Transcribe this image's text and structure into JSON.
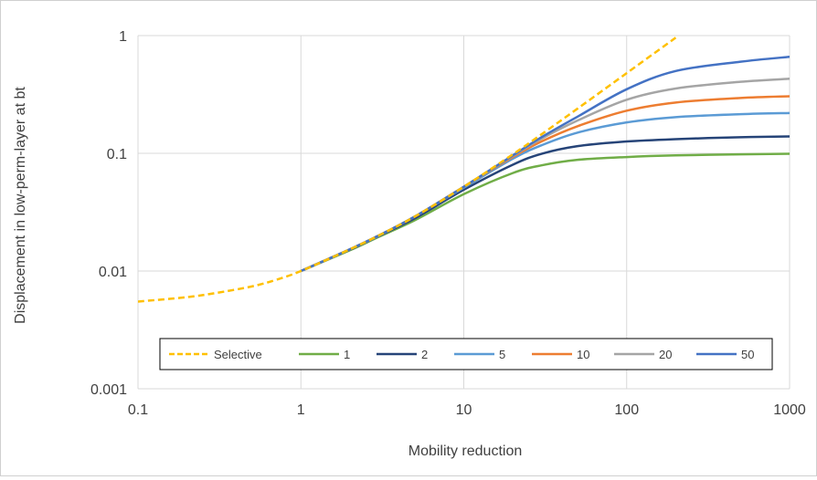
{
  "chart_data": {
    "type": "line",
    "title": "",
    "xlabel": "Mobility reduction",
    "ylabel": "Displacement in low-perm-layer at bt",
    "xscale": "log",
    "yscale": "log",
    "xlim": [
      0.1,
      1000
    ],
    "ylim": [
      0.001,
      1
    ],
    "x_ticks": [
      "0.1",
      "1",
      "10",
      "100",
      "1000"
    ],
    "y_ticks": [
      "0.001",
      "0.01",
      "0.1",
      "1"
    ],
    "grid": true,
    "legend_position": "bottom-inside",
    "series": [
      {
        "name": "Selective",
        "color": "#FFC000",
        "dash": "dashed",
        "x": [
          0.1,
          0.2,
          0.3,
          0.5,
          0.7,
          1,
          2,
          3,
          5,
          10,
          20,
          30,
          50,
          100,
          200
        ],
        "y": [
          0.0055,
          0.006,
          0.0065,
          0.0074,
          0.0084,
          0.01,
          0.0153,
          0.02,
          0.029,
          0.052,
          0.098,
          0.145,
          0.24,
          0.48,
          0.96
        ]
      },
      {
        "name": "1",
        "color": "#70AD47",
        "dash": "solid",
        "x": [
          1,
          2,
          3,
          5,
          10,
          20,
          30,
          50,
          100,
          200,
          500,
          1000
        ],
        "y": [
          0.01,
          0.015,
          0.0195,
          0.027,
          0.045,
          0.068,
          0.079,
          0.088,
          0.093,
          0.096,
          0.098,
          0.099
        ]
      },
      {
        "name": "2",
        "color": "#264478",
        "dash": "solid",
        "x": [
          1,
          2,
          3,
          5,
          10,
          20,
          30,
          50,
          100,
          200,
          500,
          1000
        ],
        "y": [
          0.01,
          0.0152,
          0.0198,
          0.028,
          0.049,
          0.08,
          0.099,
          0.115,
          0.126,
          0.132,
          0.137,
          0.139
        ]
      },
      {
        "name": "5",
        "color": "#5B9BD5",
        "dash": "solid",
        "x": [
          1,
          2,
          3,
          5,
          10,
          20,
          30,
          50,
          100,
          200,
          500,
          1000
        ],
        "y": [
          0.01,
          0.0153,
          0.0199,
          0.029,
          0.051,
          0.09,
          0.117,
          0.15,
          0.183,
          0.203,
          0.215,
          0.22
        ]
      },
      {
        "name": "10",
        "color": "#ED7D31",
        "dash": "solid",
        "x": [
          1,
          2,
          3,
          5,
          10,
          20,
          30,
          50,
          100,
          200,
          500,
          1000
        ],
        "y": [
          0.01,
          0.0153,
          0.02,
          0.029,
          0.052,
          0.093,
          0.126,
          0.17,
          0.23,
          0.27,
          0.295,
          0.305
        ]
      },
      {
        "name": "20",
        "color": "#A5A5A5",
        "dash": "solid",
        "x": [
          1,
          2,
          3,
          5,
          10,
          20,
          30,
          50,
          100,
          200,
          500,
          1000
        ],
        "y": [
          0.01,
          0.0153,
          0.02,
          0.029,
          0.052,
          0.095,
          0.133,
          0.19,
          0.285,
          0.355,
          0.405,
          0.43
        ]
      },
      {
        "name": "50",
        "color": "#4472C4",
        "dash": "solid",
        "x": [
          1,
          2,
          3,
          5,
          10,
          20,
          30,
          50,
          100,
          200,
          500,
          1000
        ],
        "y": [
          0.01,
          0.0153,
          0.02,
          0.029,
          0.052,
          0.096,
          0.137,
          0.205,
          0.35,
          0.5,
          0.6,
          0.66
        ]
      }
    ]
  }
}
